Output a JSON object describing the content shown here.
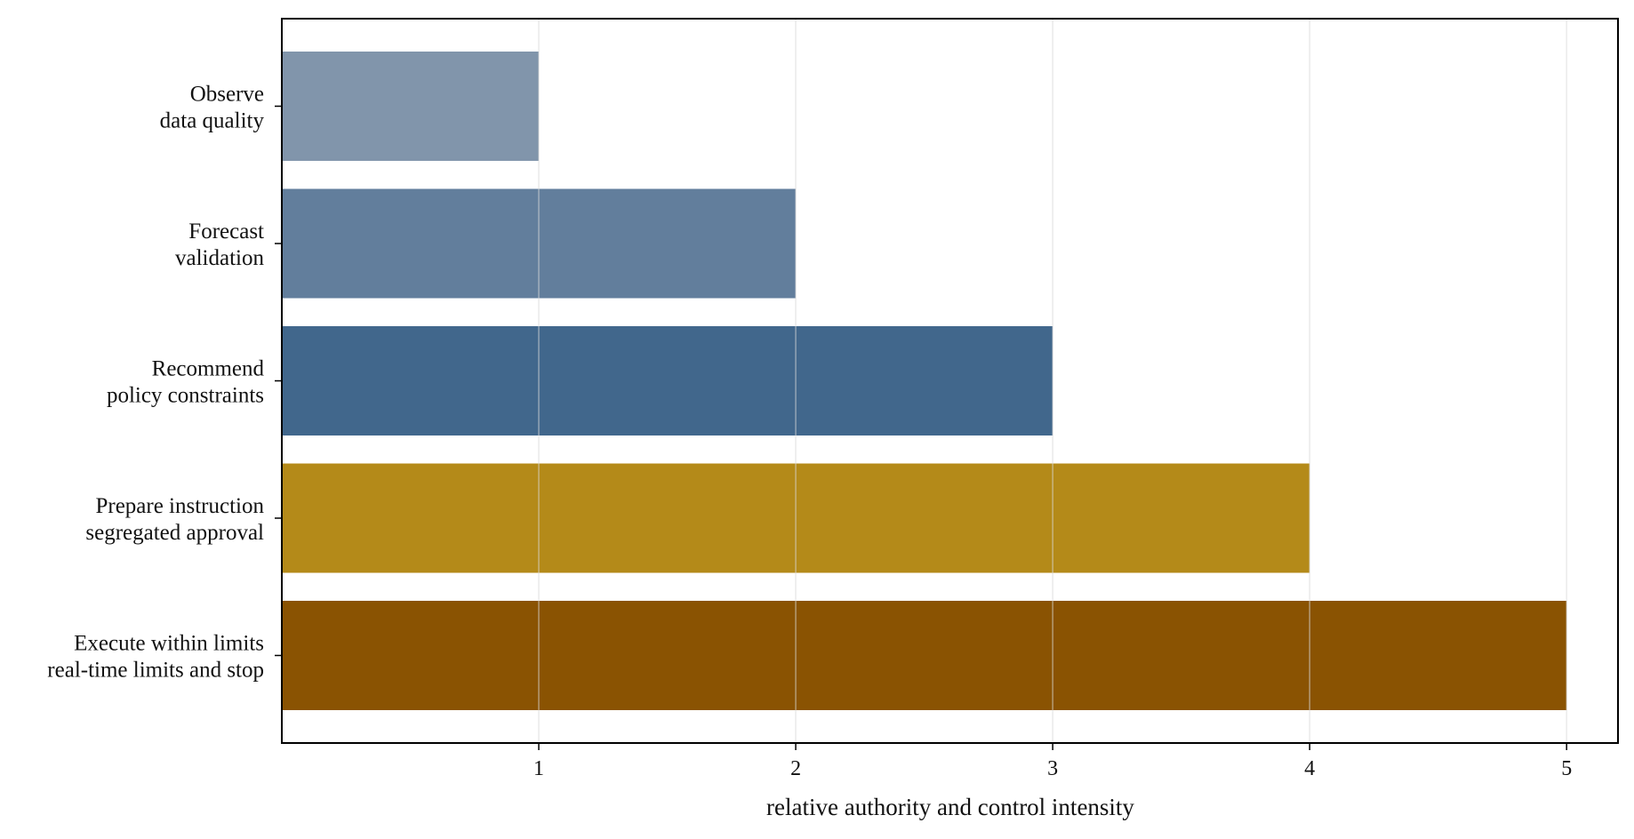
{
  "chart_data": {
    "type": "bar",
    "orientation": "horizontal",
    "title": "",
    "xlabel": "relative authority and control intensity",
    "ylabel": "",
    "xlim": [
      0,
      5.2
    ],
    "grid": "vertical",
    "legend": "none",
    "categories": [
      [
        "Observe",
        "data quality"
      ],
      [
        "Forecast",
        "validation"
      ],
      [
        "Recommend",
        "policy constraints"
      ],
      [
        "Prepare instruction",
        "segregated approval"
      ],
      [
        "Execute within limits",
        "real-time limits and stop"
      ]
    ],
    "values": [
      1,
      2,
      3,
      4,
      5
    ],
    "colors": [
      "#8195ab",
      "#627e9c",
      "#41678c",
      "#b48a19",
      "#8a5302"
    ],
    "xticks": [
      1,
      2,
      3,
      4,
      5
    ],
    "xtick_labels": [
      "1",
      "2",
      "3",
      "4",
      "5"
    ]
  }
}
